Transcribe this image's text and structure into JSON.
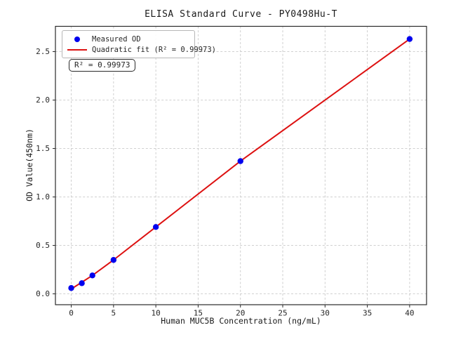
{
  "chart_data": {
    "type": "scatter",
    "title": "ELISA Standard Curve - PY0498Hu-T",
    "xlabel": "Human MUC5B Concentration (ng/mL)",
    "ylabel": "OD Value(450nm)",
    "xlim": [
      -1.87,
      42.0
    ],
    "ylim": [
      -0.112,
      2.761
    ],
    "xticks": [
      0,
      5,
      10,
      15,
      20,
      25,
      30,
      35,
      40
    ],
    "yticks": [
      0.0,
      0.5,
      1.0,
      1.5,
      2.0,
      2.5
    ],
    "xtick_labels": [
      "0",
      "5",
      "10",
      "15",
      "20",
      "25",
      "30",
      "35",
      "40"
    ],
    "ytick_labels": [
      "0.0",
      "0.5",
      "1.0",
      "1.5",
      "2.0",
      "2.5"
    ],
    "grid": true,
    "series": [
      {
        "name": "Measured OD",
        "type": "scatter",
        "color": "#0000ee",
        "x": [
          0,
          1.25,
          2.5,
          5,
          10,
          20,
          40
        ],
        "y": [
          0.06,
          0.11,
          0.19,
          0.35,
          0.69,
          1.37,
          2.63
        ]
      },
      {
        "name": "Quadratic fit (R² = 0.99973)",
        "type": "line",
        "color": "#dd1111",
        "x": [
          0,
          1.25,
          2.5,
          5,
          10,
          20,
          40
        ],
        "y": [
          0.05,
          0.12,
          0.19,
          0.35,
          0.69,
          1.37,
          2.63
        ]
      }
    ],
    "legend": {
      "position": "upper left",
      "entries": [
        {
          "label": "Measured OD",
          "marker": "circle",
          "color": "#0000ee"
        },
        {
          "label": "Quadratic fit (R² = 0.99973)",
          "marker": "line",
          "color": "#dd1111"
        }
      ]
    },
    "annotation": {
      "text": "R² = 0.99973"
    },
    "r_squared": 0.99973
  },
  "colors": {
    "points": "#0000ee",
    "fit_line": "#dd1111",
    "grid": "#c9c9c9",
    "axis": "#2a2a2a",
    "tick_text": "#262626",
    "background": "#ffffff"
  }
}
